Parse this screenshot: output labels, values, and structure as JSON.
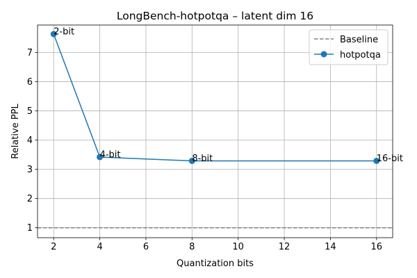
{
  "chart_data": {
    "type": "line",
    "title": "LongBench-hotpotqa – latent dim 16",
    "xlabel": "Quantization bits",
    "ylabel": "Relative PPL",
    "xlim": [
      1.3,
      16.7
    ],
    "ylim": [
      0.66,
      7.94
    ],
    "xticks": [
      2,
      4,
      6,
      8,
      10,
      12,
      14,
      16
    ],
    "yticks": [
      1,
      2,
      3,
      4,
      5,
      6,
      7
    ],
    "grid": true,
    "legend_position": "top-right",
    "baseline": {
      "name": "Baseline",
      "value": 1.0,
      "style": "dashed",
      "color": "#808080"
    },
    "series": [
      {
        "name": "hotpotqa",
        "color": "#1f77b4",
        "x": [
          2,
          4,
          8,
          16
        ],
        "y": [
          7.63,
          3.42,
          3.29,
          3.29
        ],
        "point_labels": [
          "2-bit",
          "4-bit",
          "8-bit",
          "16-bit"
        ]
      }
    ]
  }
}
